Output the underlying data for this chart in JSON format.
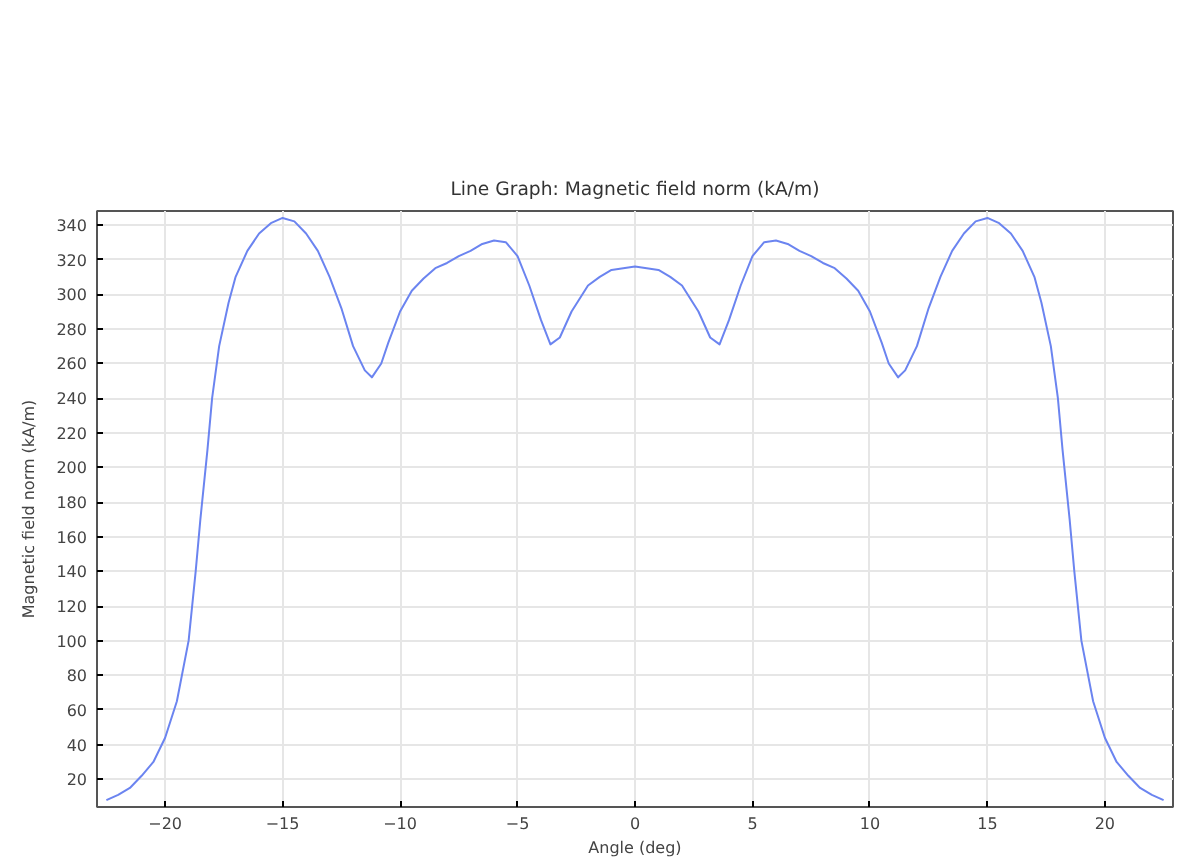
{
  "chart_data": {
    "type": "line",
    "title": "Line Graph: Magnetic field norm (kA/m)",
    "xlabel": "Angle (deg)",
    "ylabel": "Magnetic field norm (kA/m)",
    "x": [
      -22.5,
      -22,
      -21.5,
      -21,
      -20.5,
      -20,
      -19.5,
      -19,
      -18.7,
      -18.5,
      -18.2,
      -18,
      -17.7,
      -17.3,
      -17,
      -16.5,
      -16,
      -15.5,
      -15,
      -14.5,
      -14,
      -13.5,
      -13,
      -12.5,
      -12,
      -11.5,
      -11.2,
      -10.8,
      -10.5,
      -10,
      -9.5,
      -9,
      -8.5,
      -8,
      -7.5,
      -7,
      -6.5,
      -6,
      -5.5,
      -5,
      -4.5,
      -4,
      -3.6,
      -3.2,
      -2.7,
      -2,
      -1.5,
      -1,
      -0.5,
      0,
      0.5,
      1,
      1.5,
      2,
      2.7,
      3.2,
      3.6,
      4,
      4.5,
      5,
      5.5,
      6,
      6.5,
      7,
      7.5,
      8,
      8.5,
      9,
      9.5,
      10,
      10.5,
      10.8,
      11.2,
      11.5,
      12,
      12.5,
      13,
      13.5,
      14,
      14.5,
      15,
      15.5,
      16,
      16.5,
      17,
      17.3,
      17.7,
      18,
      18.2,
      18.5,
      18.7,
      19,
      19.5,
      20,
      20.5,
      21,
      21.5,
      22,
      22.5
    ],
    "series": [
      {
        "color": "#6b84f0",
        "values": [
          8,
          11,
          15,
          22,
          30,
          44,
          65,
          100,
          140,
          170,
          210,
          240,
          270,
          295,
          310,
          325,
          335,
          341,
          344,
          342,
          335,
          325,
          310,
          292,
          270,
          256,
          252,
          260,
          272,
          290,
          302,
          309,
          315,
          318,
          322,
          325,
          329,
          331,
          330,
          322,
          305,
          285,
          271,
          275,
          290,
          305,
          310,
          314,
          315,
          316,
          315,
          314,
          310,
          305,
          290,
          275,
          271,
          285,
          305,
          322,
          330,
          331,
          329,
          325,
          322,
          318,
          315,
          309,
          302,
          290,
          272,
          260,
          252,
          256,
          270,
          292,
          310,
          325,
          335,
          342,
          344,
          341,
          335,
          325,
          310,
          295,
          270,
          240,
          210,
          170,
          140,
          100,
          65,
          44,
          30,
          22,
          15,
          11,
          8
        ]
      }
    ],
    "xlim": [
      -22.9,
      22.9
    ],
    "ylim": [
      4,
      348
    ],
    "xticks": [
      -20,
      -15,
      -10,
      -5,
      0,
      5,
      10,
      15,
      20
    ],
    "yticks": [
      20,
      40,
      60,
      80,
      100,
      120,
      140,
      160,
      180,
      200,
      220,
      240,
      260,
      280,
      300,
      320,
      340
    ],
    "grid": true,
    "line_style": "solid"
  }
}
